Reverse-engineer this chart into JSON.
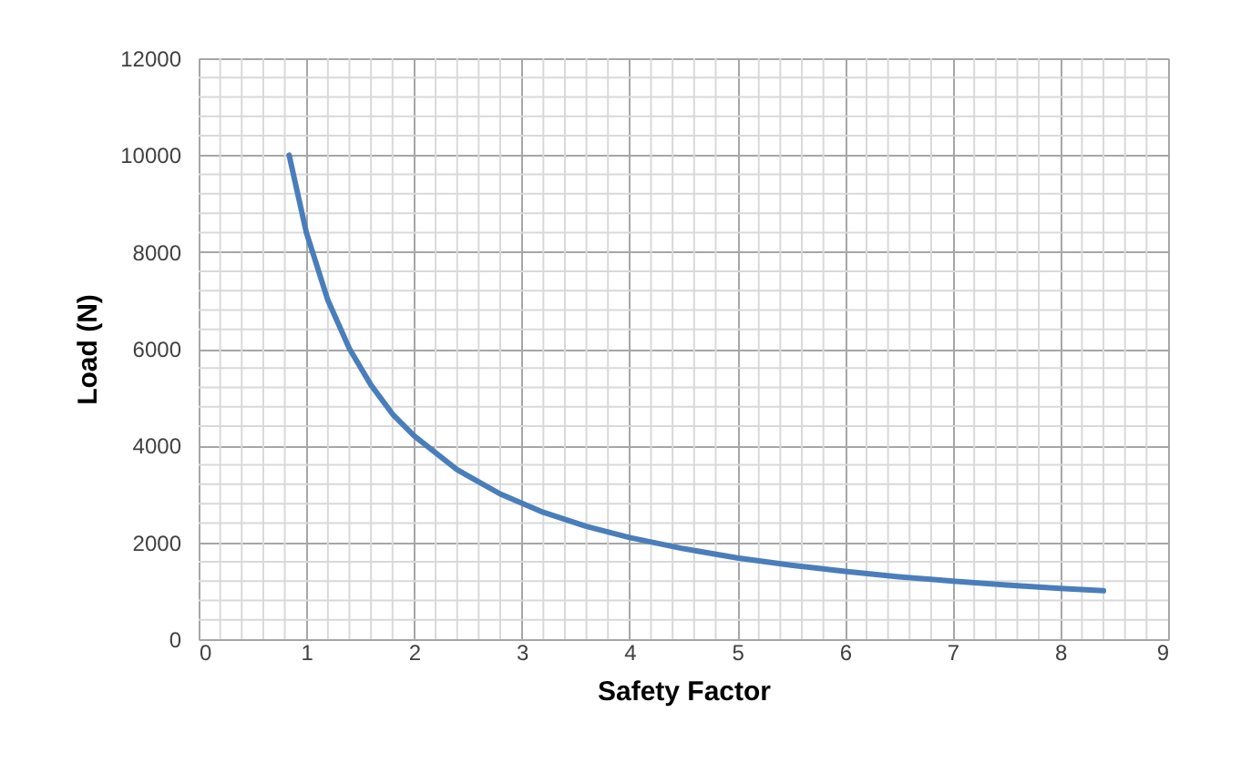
{
  "chart_data": {
    "type": "line",
    "xlabel": "Safety Factor",
    "ylabel": "Load (N)",
    "x": [
      0.84,
      1.0,
      1.2,
      1.4,
      1.6,
      1.8,
      2.0,
      2.4,
      2.8,
      3.2,
      3.6,
      4.0,
      4.5,
      5.0,
      5.5,
      6.0,
      6.5,
      7.0,
      7.5,
      8.0,
      8.4
    ],
    "series": [
      {
        "color": "#4a7ebb",
        "values": [
          10000,
          8400,
          7000,
          6000,
          5250,
          4650,
          4200,
          3500,
          3000,
          2620,
          2330,
          2100,
          1870,
          1680,
          1530,
          1400,
          1290,
          1200,
          1120,
          1050,
          1000
        ]
      }
    ],
    "xlim": [
      0,
      9
    ],
    "xticks": [
      0,
      1,
      2,
      3,
      4,
      5,
      6,
      7,
      8,
      9
    ],
    "ylim": [
      0,
      12000
    ],
    "yticks": [
      0,
      2000,
      4000,
      6000,
      8000,
      10000,
      12000
    ],
    "grid": true,
    "marker": "none",
    "line_style": "solid"
  }
}
